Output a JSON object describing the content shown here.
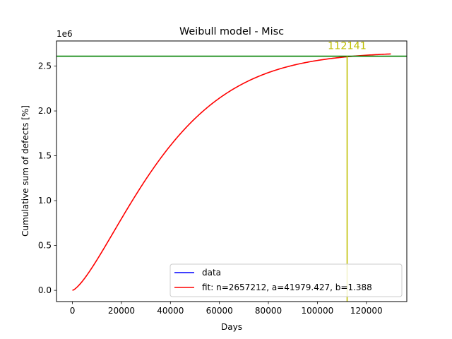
{
  "chart_data": {
    "type": "line",
    "title": "Weibull model - Misc",
    "xlabel": "Days",
    "ylabel": "Cumulative sum of defects [%]",
    "y_offset_label": "1e6",
    "xlim": [
      -6500,
      136500
    ],
    "ylim": [
      -125000,
      2780000
    ],
    "x_ticks": [
      0,
      20000,
      40000,
      60000,
      80000,
      100000,
      120000
    ],
    "x_tick_labels": [
      "0",
      "20000",
      "40000",
      "60000",
      "80000",
      "100000",
      "120000"
    ],
    "y_ticks": [
      0,
      500000,
      1000000,
      1500000,
      2000000,
      2500000
    ],
    "y_tick_labels": [
      "0.0",
      "0.5",
      "1.0",
      "1.5",
      "2.0",
      "2.5"
    ],
    "grid": false,
    "legend_position": "lower right",
    "series": [
      {
        "name": "data",
        "color": "#0000ff",
        "values": []
      },
      {
        "name": "fit: n=2657212, a=41979.427, b=1.388",
        "color": "#ff0000",
        "model": "weibull_cdf",
        "params": {
          "n": 2657212,
          "a": 41979.427,
          "b": 1.388
        },
        "x_range": [
          0,
          130000
        ]
      }
    ],
    "hline": {
      "y": 2610000,
      "color": "#008000"
    },
    "vline": {
      "x": 112141,
      "color": "#bfbf00",
      "label": "112141"
    }
  }
}
